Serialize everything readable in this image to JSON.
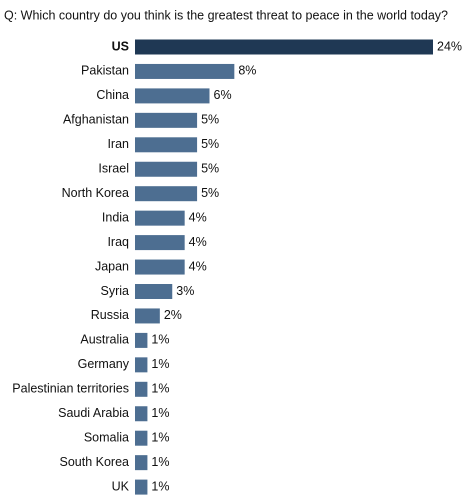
{
  "chart_data": {
    "type": "hbar",
    "title": "Q: Which country do you think is the greatest threat to peace in the world today?",
    "categories": [
      "US",
      "Pakistan",
      "China",
      "Afghanistan",
      "Iran",
      "Israel",
      "North Korea",
      "India",
      "Iraq",
      "Japan",
      "Syria",
      "Russia",
      "Australia",
      "Germany",
      "Palestinian territories",
      "Saudi Arabia",
      "Somalia",
      "South Korea",
      "UK"
    ],
    "values": [
      24,
      8,
      6,
      5,
      5,
      5,
      5,
      4,
      4,
      4,
      3,
      2,
      1,
      1,
      1,
      1,
      1,
      1,
      1
    ],
    "value_labels": [
      "24%",
      "8%",
      "6%",
      "5%",
      "5%",
      "5%",
      "5%",
      "4%",
      "4%",
      "4%",
      "3%",
      "2%",
      "1%",
      "1%",
      "1%",
      "1%",
      "1%",
      "1%",
      "1%"
    ],
    "colors": [
      "#1f3854",
      "#4d6e91",
      "#4d6e91",
      "#4d6e91",
      "#4d6e91",
      "#4d6e91",
      "#4d6e91",
      "#4d6e91",
      "#4d6e91",
      "#4d6e91",
      "#4d6e91",
      "#4d6e91",
      "#4d6e91",
      "#4d6e91",
      "#4d6e91",
      "#4d6e91",
      "#4d6e91",
      "#4d6e91",
      "#4d6e91"
    ]
  }
}
